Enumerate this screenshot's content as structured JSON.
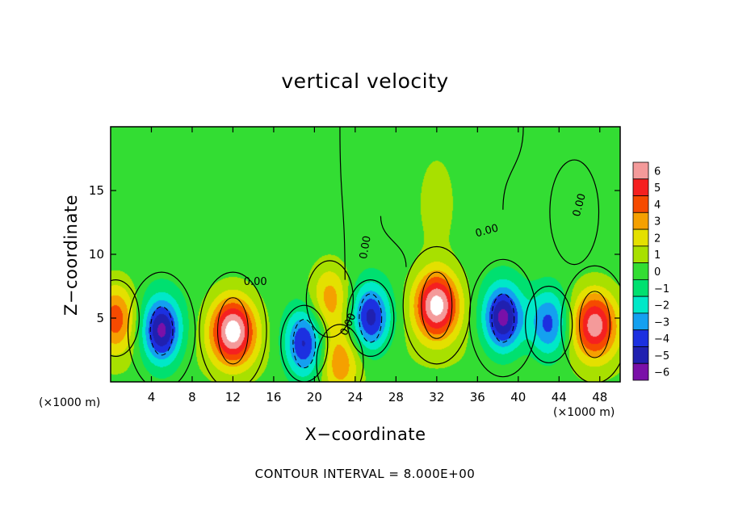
{
  "chart_data": {
    "type": "heatmap",
    "title": "vertical velocity",
    "xlabel": "X−coordinate",
    "ylabel": "Z−coordinate",
    "x_unit": "(×1000 m)",
    "footnote": "CONTOUR INTERVAL = 8.000E+00",
    "xlim": [
      0,
      50
    ],
    "ylim": [
      0,
      20
    ],
    "x_ticks": [
      4,
      8,
      12,
      16,
      20,
      24,
      28,
      32,
      36,
      40,
      44,
      48
    ],
    "y_ticks": [
      5,
      10,
      15
    ],
    "colorbar": {
      "levels": [
        "6",
        "5",
        "4",
        "3",
        "2",
        "1",
        "0",
        "−1",
        "−2",
        "−3",
        "−4",
        "−5",
        "−6"
      ],
      "colors": [
        "#f49a9a",
        "#f52020",
        "#f54a00",
        "#f5a000",
        "#e4e000",
        "#a8e000",
        "#33dd33",
        "#00e070",
        "#00e8c8",
        "#14a0f0",
        "#1c30e0",
        "#2020b0",
        "#7a10a8"
      ]
    },
    "contour_labels": [
      "0.00",
      "0.00",
      "0.00",
      "0.00",
      "0.00"
    ],
    "cells": [
      {
        "x": 0.5,
        "z": 5,
        "w": 4
      },
      {
        "x": 5,
        "z": 4,
        "w": -6
      },
      {
        "x": 12,
        "z": 4,
        "w": 7
      },
      {
        "x": 19,
        "z": 3,
        "w": -5
      },
      {
        "x": 21.5,
        "z": 6.5,
        "w": 3
      },
      {
        "x": 22.5,
        "z": 1.5,
        "w": 3
      },
      {
        "x": 25.5,
        "z": 5,
        "w": -5
      },
      {
        "x": 32,
        "z": 6,
        "w": 7
      },
      {
        "x": 38.5,
        "z": 5,
        "w": -6
      },
      {
        "x": 43,
        "z": 4.5,
        "w": -4
      },
      {
        "x": 47.5,
        "z": 4.5,
        "w": 6
      },
      {
        "x": 32,
        "z": 14,
        "w": 1
      }
    ]
  }
}
